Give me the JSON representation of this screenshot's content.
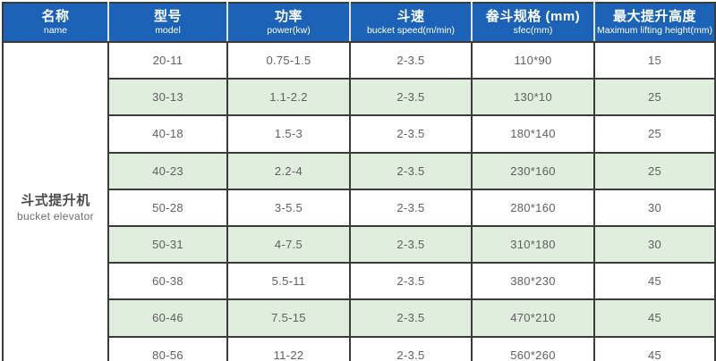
{
  "table": {
    "columns": [
      {
        "zh": "名称",
        "en": "name"
      },
      {
        "zh": "型号",
        "en": "model"
      },
      {
        "zh": "功率",
        "en": "power(kw)"
      },
      {
        "zh": "斗速",
        "en": "bucket speed(m/min)"
      },
      {
        "zh": "畚斗规格 (mm)",
        "en": "sfec(mm)"
      },
      {
        "zh": "最大提升高度",
        "en": "Maximum lifting height(mm)"
      }
    ],
    "category": {
      "zh": "斗式提升机",
      "en": "bucket elevator"
    },
    "rows": [
      [
        "20-11",
        "0.75-1.5",
        "2-3.5",
        "110*90",
        "15"
      ],
      [
        "30-13",
        "1.1-2.2",
        "2-3.5",
        "130*10",
        "25"
      ],
      [
        "40-18",
        "1.5-3",
        "2-3.5",
        "180*140",
        "25"
      ],
      [
        "40-23",
        "2.2-4",
        "2-3.5",
        "230*160",
        "25"
      ],
      [
        "50-28",
        "3-5.5",
        "2-3.5",
        "280*160",
        "30"
      ],
      [
        "50-31",
        "4-7.5",
        "2-3.5",
        "310*180",
        "30"
      ],
      [
        "60-38",
        "5.5-11",
        "2-3.5",
        "380*230",
        "45"
      ],
      [
        "60-46",
        "7.5-15",
        "2-3.5",
        "470*210",
        "45"
      ],
      [
        "80-56",
        "11-22",
        "2-3.5",
        "560*260",
        "45"
      ]
    ],
    "colors": {
      "header_bg": "#1c63b7",
      "row_alt_bg": "#dfeedd",
      "border": "#3b3b3b",
      "body_text": "#606060"
    }
  }
}
